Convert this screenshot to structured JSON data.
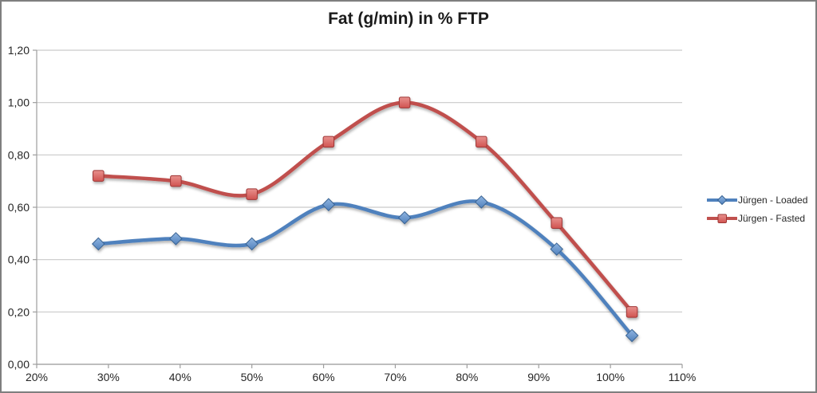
{
  "chart_data": {
    "type": "line",
    "title": "Fat (g/min) in % FTP",
    "xlabel": "",
    "ylabel": "",
    "xlim": [
      20,
      110
    ],
    "ylim": [
      0,
      1.2
    ],
    "grid": true,
    "legend_position": "right",
    "x_tick_values": [
      20,
      30,
      40,
      50,
      60,
      70,
      80,
      90,
      100,
      110
    ],
    "x_tick_labels": [
      "20%",
      "30%",
      "40%",
      "50%",
      "60%",
      "70%",
      "80%",
      "90%",
      "100%",
      "110%"
    ],
    "y_tick_values": [
      0,
      0.2,
      0.4,
      0.6,
      0.8,
      1.0,
      1.2
    ],
    "y_tick_labels": [
      "0,00",
      "0,20",
      "0,40",
      "0,60",
      "0,80",
      "1,00",
      "1,20"
    ],
    "x": [
      28.6,
      39.4,
      50,
      60.7,
      71.3,
      82,
      92.5,
      103
    ],
    "series": [
      {
        "name": "Jürgen - Loaded",
        "marker": "diamond",
        "color": "#4F81BD",
        "marker_fill_top": "#8FB5E1",
        "marker_fill_bottom": "#5181BC",
        "marker_stroke": "#3A6493",
        "values": [
          0.46,
          0.48,
          0.46,
          0.61,
          0.56,
          0.62,
          0.44,
          0.11
        ]
      },
      {
        "name": "Jürgen - Fasted",
        "marker": "square",
        "color": "#C0504D",
        "marker_fill_top": "#E8918E",
        "marker_fill_bottom": "#D05350",
        "marker_stroke": "#9E3634",
        "values": [
          0.72,
          0.7,
          0.65,
          0.85,
          1.0,
          0.85,
          0.54,
          0.2
        ]
      }
    ],
    "colors": {
      "gridline": "#C9C9C9",
      "axis": "#9E9E9E",
      "frame_border": "#7F7F7F",
      "title_text": "#1A1A1A",
      "tick_text": "#262626"
    }
  }
}
